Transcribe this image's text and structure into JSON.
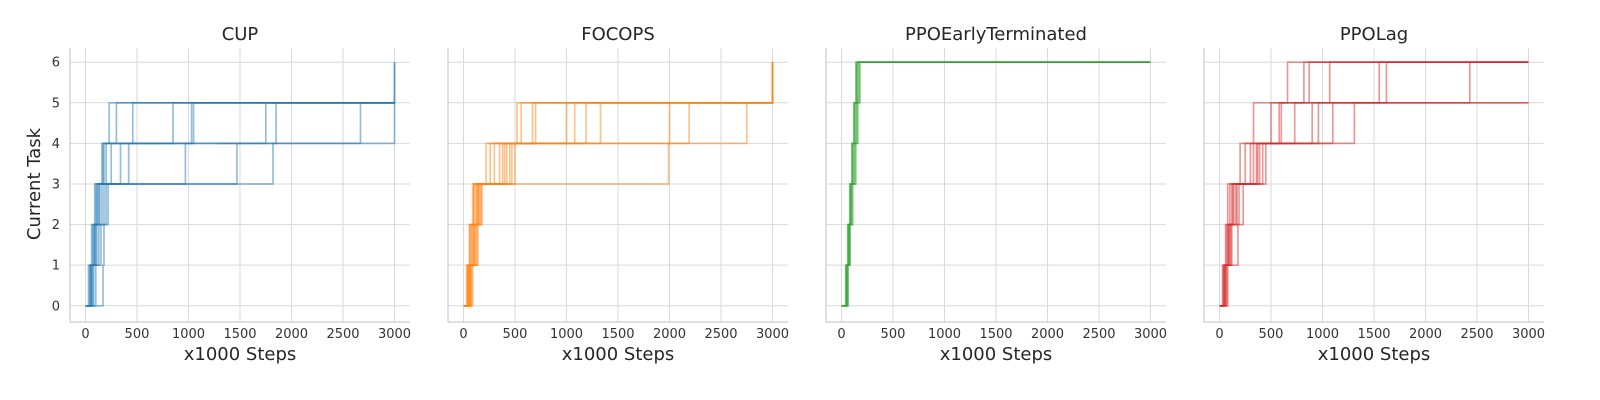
{
  "figure": {
    "ylabel": "Current Task",
    "xlabel": "x1000 Steps"
  },
  "chart_data": [
    {
      "type": "line",
      "title": "CUP",
      "color": "#1f77b4",
      "xlabel": "x1000 Steps",
      "ylabel": "Current Task",
      "xlim": [
        -150,
        3150
      ],
      "ylim": [
        -0.4,
        6.35
      ],
      "x_ticks": [
        0,
        500,
        1000,
        1500,
        2000,
        2500,
        3000
      ],
      "y_ticks": [
        0,
        1,
        2,
        3,
        4,
        5,
        6
      ],
      "grid": true,
      "step_style": "post",
      "series": [
        {
          "x": [
            0,
            30,
            60,
            90,
            160,
            230,
            3000
          ],
          "y": [
            0,
            1,
            2,
            3,
            4,
            5,
            5
          ]
        },
        {
          "x": [
            0,
            40,
            80,
            110,
            180,
            300,
            3000
          ],
          "y": [
            0,
            1,
            2,
            3,
            4,
            5,
            5
          ]
        },
        {
          "x": [
            0,
            50,
            100,
            130,
            200,
            1750,
            3000
          ],
          "y": [
            0,
            1,
            2,
            3,
            4,
            5,
            6
          ]
        },
        {
          "x": [
            0,
            60,
            90,
            140,
            250,
            2670,
            3000
          ],
          "y": [
            0,
            1,
            2,
            3,
            4,
            5,
            6
          ]
        },
        {
          "x": [
            0,
            70,
            110,
            160,
            340,
            460,
            3000
          ],
          "y": [
            0,
            1,
            2,
            3,
            4,
            5,
            5
          ]
        },
        {
          "x": [
            0,
            80,
            130,
            180,
            420,
            850,
            3000
          ],
          "y": [
            0,
            1,
            2,
            3,
            4,
            5,
            5
          ]
        },
        {
          "x": [
            0,
            100,
            150,
            200,
            970,
            1050,
            3000
          ],
          "y": [
            0,
            1,
            2,
            3,
            4,
            5,
            5
          ]
        },
        {
          "x": [
            0,
            170,
            180,
            220,
            1470,
            1280,
            3000
          ],
          "y": [
            0,
            1,
            2,
            3,
            4,
            4,
            5
          ]
        },
        {
          "x": [
            0,
            60,
            90,
            120,
            1820,
            1850,
            3000
          ],
          "y": [
            0,
            1,
            2,
            3,
            4,
            5,
            5
          ]
        },
        {
          "x": [
            0,
            50,
            70,
            100,
            170,
            1030,
            3000
          ],
          "y": [
            0,
            1,
            2,
            3,
            4,
            5,
            5
          ]
        }
      ]
    },
    {
      "type": "line",
      "title": "FOCOPS",
      "color": "#ff7f0e",
      "xlabel": "x1000 Steps",
      "ylabel": "Current Task",
      "xlim": [
        -150,
        3150
      ],
      "ylim": [
        -0.4,
        6.35
      ],
      "x_ticks": [
        0,
        500,
        1000,
        1500,
        2000,
        2500,
        3000
      ],
      "y_ticks": [
        0,
        1,
        2,
        3,
        4,
        5,
        6
      ],
      "grid": true,
      "step_style": "post",
      "series": [
        {
          "x": [
            0,
            40,
            70,
            100,
            420,
            520,
            3000
          ],
          "y": [
            0,
            1,
            2,
            3,
            4,
            5,
            6
          ]
        },
        {
          "x": [
            0,
            50,
            80,
            120,
            380,
            560,
            3000
          ],
          "y": [
            0,
            1,
            2,
            3,
            4,
            5,
            5
          ]
        },
        {
          "x": [
            0,
            60,
            100,
            140,
            300,
            670,
            3000
          ],
          "y": [
            0,
            1,
            2,
            3,
            4,
            5,
            5
          ]
        },
        {
          "x": [
            0,
            70,
            110,
            150,
            220,
            700,
            3000
          ],
          "y": [
            0,
            1,
            2,
            3,
            4,
            5,
            5
          ]
        },
        {
          "x": [
            0,
            80,
            130,
            170,
            470,
            1000,
            3000
          ],
          "y": [
            0,
            1,
            2,
            3,
            4,
            5,
            5
          ]
        },
        {
          "x": [
            0,
            60,
            120,
            160,
            500,
            1190,
            3000
          ],
          "y": [
            0,
            1,
            2,
            3,
            4,
            5,
            5
          ]
        },
        {
          "x": [
            0,
            50,
            90,
            130,
            1990,
            2000,
            3000
          ],
          "y": [
            0,
            1,
            2,
            3,
            4,
            5,
            5
          ]
        },
        {
          "x": [
            0,
            70,
            100,
            140,
            350,
            1080,
            3000
          ],
          "y": [
            0,
            1,
            2,
            3,
            4,
            5,
            6
          ]
        },
        {
          "x": [
            0,
            90,
            140,
            180,
            450,
            1330,
            3000
          ],
          "y": [
            0,
            1,
            2,
            3,
            4,
            5,
            6
          ]
        },
        {
          "x": [
            0,
            40,
            60,
            100,
            260,
            2190,
            3000
          ],
          "y": [
            0,
            1,
            2,
            3,
            4,
            5,
            6
          ]
        },
        {
          "x": [
            0,
            30,
            60,
            90,
            400,
            2750,
            3000
          ],
          "y": [
            0,
            1,
            2,
            3,
            4,
            5,
            6
          ]
        }
      ]
    },
    {
      "type": "line",
      "title": "PPOEarlyTerminated",
      "color": "#2ca02c",
      "xlabel": "x1000 Steps",
      "ylabel": "Current Task",
      "xlim": [
        -150,
        3150
      ],
      "ylim": [
        -0.4,
        6.35
      ],
      "x_ticks": [
        0,
        500,
        1000,
        1500,
        2000,
        2500,
        3000
      ],
      "y_ticks": [
        0,
        1,
        2,
        3,
        4,
        5,
        6
      ],
      "grid": true,
      "step_style": "post",
      "series": [
        {
          "x": [
            0,
            40,
            60,
            80,
            100,
            120,
            140,
            3000
          ],
          "y": [
            0,
            1,
            2,
            3,
            4,
            5,
            6,
            6
          ]
        },
        {
          "x": [
            0,
            50,
            70,
            90,
            110,
            130,
            150,
            3000
          ],
          "y": [
            0,
            1,
            2,
            3,
            4,
            5,
            6,
            6
          ]
        },
        {
          "x": [
            0,
            45,
            65,
            85,
            105,
            125,
            145,
            3000
          ],
          "y": [
            0,
            1,
            2,
            3,
            4,
            5,
            6,
            6
          ]
        },
        {
          "x": [
            0,
            55,
            75,
            95,
            120,
            140,
            160,
            3000
          ],
          "y": [
            0,
            1,
            2,
            3,
            4,
            5,
            6,
            6
          ]
        },
        {
          "x": [
            0,
            60,
            80,
            100,
            130,
            150,
            170,
            3000
          ],
          "y": [
            0,
            1,
            2,
            3,
            4,
            5,
            6,
            6
          ]
        },
        {
          "x": [
            0,
            65,
            85,
            110,
            140,
            160,
            180,
            3000
          ],
          "y": [
            0,
            1,
            2,
            3,
            4,
            5,
            6,
            6
          ]
        }
      ]
    },
    {
      "type": "line",
      "title": "PPOLag",
      "color": "#d62728",
      "xlabel": "x1000 Steps",
      "ylabel": "Current Task",
      "xlim": [
        -150,
        3150
      ],
      "ylim": [
        -0.4,
        6.35
      ],
      "x_ticks": [
        0,
        500,
        1000,
        1500,
        2000,
        2500,
        3000
      ],
      "y_ticks": [
        0,
        1,
        2,
        3,
        4,
        5,
        6
      ],
      "grid": true,
      "step_style": "post",
      "series": [
        {
          "x": [
            0,
            30,
            60,
            80,
            200,
            330,
            660,
            3000
          ],
          "y": [
            0,
            1,
            2,
            3,
            4,
            5,
            6,
            6
          ]
        },
        {
          "x": [
            0,
            40,
            70,
            100,
            250,
            500,
            820,
            3000
          ],
          "y": [
            0,
            1,
            2,
            3,
            4,
            5,
            6,
            6
          ]
        },
        {
          "x": [
            0,
            50,
            80,
            120,
            300,
            600,
            870,
            3000
          ],
          "y": [
            0,
            1,
            2,
            3,
            4,
            5,
            6,
            6
          ]
        },
        {
          "x": [
            0,
            60,
            90,
            140,
            330,
            730,
            1070,
            3000
          ],
          "y": [
            0,
            1,
            2,
            3,
            4,
            5,
            6,
            6
          ]
        },
        {
          "x": [
            0,
            40,
            100,
            160,
            370,
            900,
            1550,
            3000
          ],
          "y": [
            0,
            1,
            2,
            3,
            4,
            5,
            6,
            6
          ]
        },
        {
          "x": [
            0,
            70,
            110,
            170,
            390,
            960,
            1620,
            3000
          ],
          "y": [
            0,
            1,
            2,
            3,
            4,
            5,
            6,
            6
          ]
        },
        {
          "x": [
            0,
            80,
            120,
            190,
            420,
            580,
            2430,
            3000
          ],
          "y": [
            0,
            1,
            2,
            3,
            4,
            5,
            6,
            6
          ]
        },
        {
          "x": [
            0,
            50,
            180,
            230,
            450,
            1310,
            3000
          ],
          "y": [
            0,
            1,
            2,
            3,
            4,
            5,
            5
          ]
        },
        {
          "x": [
            0,
            60,
            90,
            130,
            360,
            1100,
            3000
          ],
          "y": [
            0,
            1,
            2,
            3,
            4,
            5,
            5
          ]
        }
      ]
    }
  ]
}
